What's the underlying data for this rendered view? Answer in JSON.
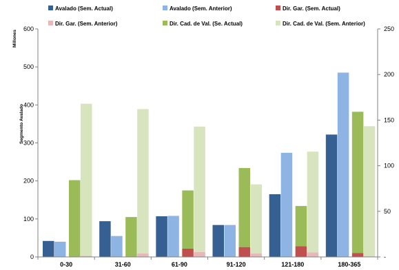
{
  "chart_data": {
    "type": "bar",
    "y_label": "Segmento Avalado",
    "y_unit": "Millones",
    "y_left_range": [
      0,
      600
    ],
    "y_left_ticks": [
      "0",
      "100",
      "200",
      "300",
      "400",
      "500",
      "600"
    ],
    "y_right_range": [
      0,
      250
    ],
    "y_right_ticks": [
      "-",
      "50",
      "100",
      "150",
      "200",
      "250"
    ],
    "categories": [
      "0-30",
      "31-60",
      "61-90",
      "91-120",
      "121-180",
      "180-365"
    ],
    "legend_position": "top",
    "series": [
      {
        "name": "Avalado (Sem. Actual)",
        "color": "#376092",
        "axis": "left",
        "stack": "a",
        "values": [
          42,
          94,
          107,
          84,
          165,
          322
        ]
      },
      {
        "name": "Avalado (Sem. Anterior)",
        "color": "#8DB4E2",
        "axis": "left",
        "stack": "b",
        "values": [
          40,
          55,
          108,
          84,
          274,
          485
        ]
      },
      {
        "name": "Dir. Gar. (Sem. Actual)",
        "color": "#C0504D",
        "axis": "left",
        "stack": "c",
        "values": [
          0,
          0,
          22,
          26,
          28,
          10
        ]
      },
      {
        "name": "Dir. Gar. (Sem. Anterior)",
        "color": "#E6B9B8",
        "axis": "left",
        "stack": "d",
        "values": [
          3,
          9,
          13,
          9,
          12,
          0
        ]
      },
      {
        "name": "Dir. Cad. de Val. (Se. Actual)",
        "color": "#9BBB59",
        "axis": "left",
        "stack": "c",
        "values": [
          202,
          105,
          153,
          208,
          106,
          372
        ]
      },
      {
        "name": "Dir. Cad. de Val. (Sem. Anterior)",
        "color": "#D7E4BD",
        "axis": "left",
        "stack": "d",
        "values": [
          400,
          380,
          330,
          182,
          265,
          344
        ]
      }
    ],
    "grid": false
  }
}
